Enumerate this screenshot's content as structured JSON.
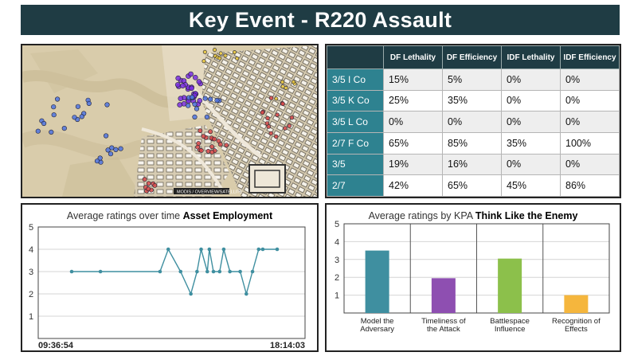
{
  "header": {
    "title": "Key Event - R220 Assault"
  },
  "map": {
    "credit": "MODIS / OVERVIEW/SATELLITE",
    "colors": {
      "ground": "#d9ccab",
      "blue_marker": "#4d73e0",
      "purple_marker": "#7a2ee0",
      "red_marker": "#d94a4a",
      "yellow_marker": "#e8c53a"
    }
  },
  "table": {
    "columns": [
      "",
      "DF Lethality",
      "DF Efficiency",
      "IDF Lethality",
      "IDF Efficiency"
    ],
    "rows": [
      {
        "unit": "3/5 I Co",
        "values": [
          "15%",
          "5%",
          "0%",
          "0%"
        ]
      },
      {
        "unit": "3/5 K Co",
        "values": [
          "25%",
          "35%",
          "0%",
          "0%"
        ]
      },
      {
        "unit": "3/5 L Co",
        "values": [
          "0%",
          "0%",
          "0%",
          "0%"
        ]
      },
      {
        "unit": "2/7 F Co",
        "values": [
          "65%",
          "85%",
          "35%",
          "100%"
        ]
      },
      {
        "unit": "3/5",
        "values": [
          "19%",
          "16%",
          "0%",
          "0%"
        ]
      },
      {
        "unit": "2/7",
        "values": [
          "42%",
          "65%",
          "45%",
          "86%"
        ]
      }
    ],
    "colors": {
      "header": "#1f3c44",
      "rowhead": "#2e8290"
    }
  },
  "chart_data": [
    {
      "type": "line",
      "title_prefix": "Average ratings over time",
      "title_bold": "Asset Employment",
      "x_start_label": "09:36:54",
      "x_end_label": "18:14:03",
      "ylim": [
        0,
        5
      ],
      "yticks": [
        1,
        2,
        3,
        4,
        5
      ],
      "grid": true,
      "color": "#3f8fa0",
      "x": [
        0.0,
        0.14,
        0.43,
        0.47,
        0.53,
        0.58,
        0.61,
        0.63,
        0.66,
        0.67,
        0.69,
        0.72,
        0.74,
        0.77,
        0.82,
        0.85,
        0.88,
        0.91,
        0.93,
        1.0
      ],
      "values": [
        3,
        3,
        3,
        4,
        3,
        2,
        3,
        4,
        3,
        4,
        3,
        3,
        4,
        3,
        3,
        2,
        3,
        4,
        4,
        4
      ]
    },
    {
      "type": "bar",
      "title_prefix": "Average ratings by KPA",
      "title_bold": "Think Like the Enemy",
      "categories": [
        "Model the Adversary",
        "Timeliness of the Attack",
        "Battlespace Influence",
        "Recognition of Effects"
      ],
      "category_lines": [
        [
          "Model the",
          "Adversary"
        ],
        [
          "Timeliness of",
          "the Attack"
        ],
        [
          "Battlespace",
          "Influence"
        ],
        [
          "Recognition of",
          "Effects"
        ]
      ],
      "values": [
        3.5,
        1.95,
        3.05,
        1.0
      ],
      "colors": [
        "#3f8fa0",
        "#8e4fb1",
        "#8cc04b",
        "#f5b63d"
      ],
      "ylim": [
        0,
        5
      ],
      "yticks": [
        1,
        2,
        3,
        4,
        5
      ],
      "grid": true
    }
  ]
}
